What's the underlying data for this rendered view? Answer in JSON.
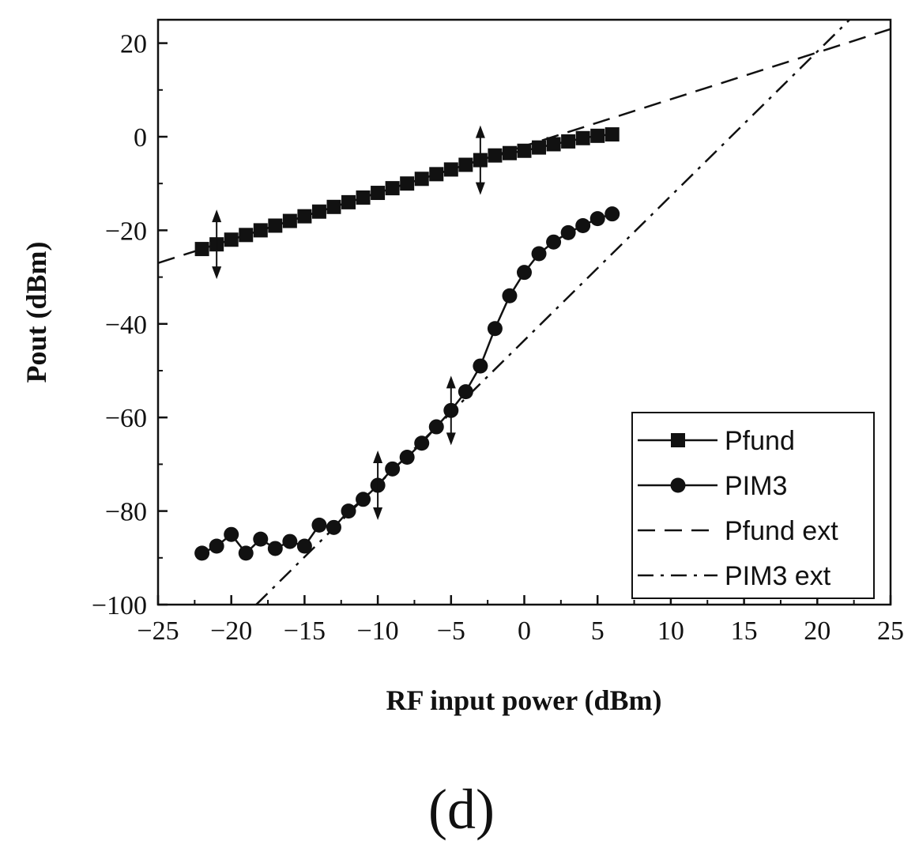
{
  "chart_data": {
    "type": "line",
    "panel_label": "(d)",
    "xlabel": "RF input power (dBm)",
    "ylabel": "Pout (dBm)",
    "xlim": [
      -25,
      25
    ],
    "ylim": [
      -100,
      25
    ],
    "x_ticks": [
      -25,
      -20,
      -15,
      -10,
      -5,
      0,
      5,
      10,
      15,
      20,
      25
    ],
    "y_ticks": [
      -100,
      -80,
      -60,
      -40,
      -20,
      0,
      20
    ],
    "x_tick_labels": [
      "−25",
      "−20",
      "−15",
      "−10",
      "−5",
      "0",
      "5",
      "10",
      "15",
      "20",
      "25"
    ],
    "y_tick_labels": [
      "−100",
      "−80",
      "−60",
      "−40",
      "−20",
      "0",
      "20"
    ],
    "grid": false,
    "legend_position": "bottom-right",
    "series": [
      {
        "name": "Pfund",
        "style": "solid",
        "marker": "square",
        "x": [
          -22,
          -21,
          -20,
          -19,
          -18,
          -17,
          -16,
          -15,
          -14,
          -13,
          -12,
          -11,
          -10,
          -9,
          -8,
          -7,
          -6,
          -5,
          -4,
          -3,
          -2,
          -1,
          0,
          1,
          2,
          3,
          4,
          5,
          6
        ],
        "y": [
          -24,
          -23,
          -22,
          -21,
          -20,
          -19,
          -18,
          -17,
          -16,
          -15,
          -14,
          -13,
          -12,
          -11,
          -10,
          -9,
          -8,
          -7,
          -6,
          -5,
          -4,
          -3.5,
          -3,
          -2.3,
          -1.6,
          -1,
          -0.3,
          0.2,
          0.5
        ]
      },
      {
        "name": "PIM3",
        "style": "solid",
        "marker": "circle",
        "x": [
          -22,
          -21,
          -20,
          -19,
          -18,
          -17,
          -16,
          -15,
          -14,
          -13,
          -12,
          -11,
          -10,
          -9,
          -8,
          -7,
          -6,
          -5,
          -4,
          -3,
          -2,
          -1,
          0,
          1,
          2,
          3,
          4,
          5,
          6
        ],
        "y": [
          -89,
          -87.5,
          -85,
          -89,
          -86,
          -88,
          -86.5,
          -87.5,
          -83,
          -83.5,
          -80,
          -77.5,
          -74.5,
          -71,
          -68.5,
          -65.5,
          -62,
          -58.5,
          -54.5,
          -49,
          -41,
          -34,
          -29,
          -25,
          -22.5,
          -20.5,
          -19,
          -17.5,
          -16.5
        ]
      },
      {
        "name": "Pfund ext",
        "style": "dashed",
        "x": [
          -25,
          25
        ],
        "y": [
          -27,
          23
        ]
      },
      {
        "name": "PIM3 ext",
        "style": "dashdot",
        "x": [
          -18.3,
          22.2
        ],
        "y": [
          -100,
          25
        ]
      }
    ],
    "annotations": [
      {
        "type": "double-arrow",
        "x": -21,
        "y_center": -23
      },
      {
        "type": "double-arrow",
        "x": -3,
        "y_center": -5
      },
      {
        "type": "double-arrow",
        "x": -10,
        "y_center": -74.5
      },
      {
        "type": "double-arrow",
        "x": -5,
        "y_center": -58.5
      }
    ]
  }
}
